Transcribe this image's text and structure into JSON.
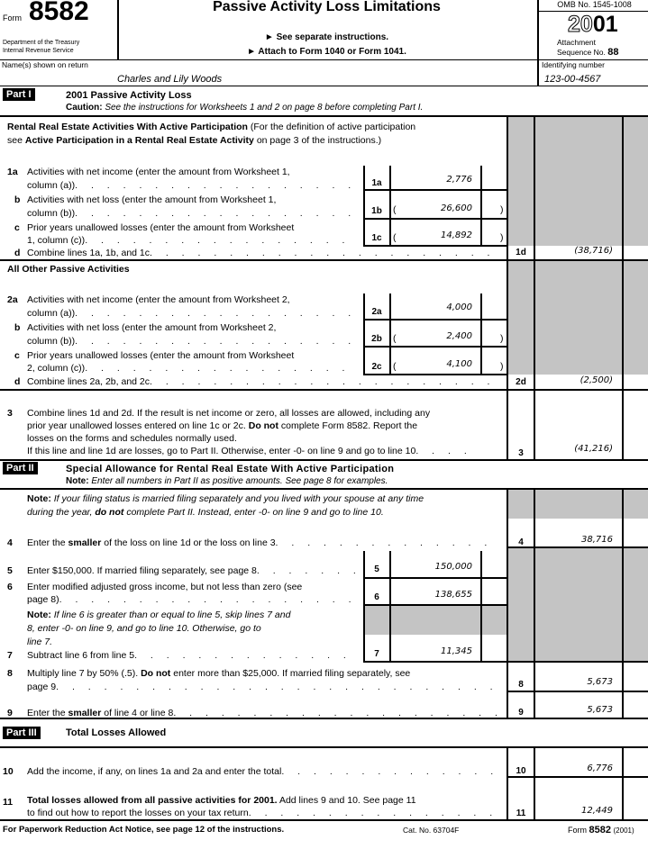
{
  "header": {
    "form_word": "Form",
    "form_number": "8582",
    "dept_line1": "Department of the Treasury",
    "dept_line2": "Internal Revenue Service",
    "title": "Passive Activity Loss Limitations",
    "instr1": "► See separate instructions.",
    "instr2": "► Attach to Form 1040 or Form 1041.",
    "omb": "OMB No. 1545-1008",
    "year_outline": "20",
    "year_bold": "01",
    "attach1": "Attachment",
    "attach2": "Sequence No.",
    "seq": "88"
  },
  "name_row": {
    "name_label": "Name(s) shown on return",
    "name_value": "Charles and Lily Woods",
    "id_label": "Identifying number",
    "id_value": "123-00-4567"
  },
  "part1": {
    "badge": "Part I",
    "title": "2001 Passive Activity Loss",
    "caution_bold": "Caution:",
    "caution_text": "See the instructions for Worksheets 1 and 2 on page 8 before completing Part I.",
    "rental_heading_bold": "Rental Real Estate Activities With Active Participation",
    "rental_heading_text": "(For the definition of active participation",
    "rental_heading_line2_pre": "see",
    "rental_heading_line2_bold": "Active Participation in a Rental Real Estate Activity",
    "rental_heading_line2_post": "on page 3 of the instructions.)",
    "l1a": {
      "num": "1a",
      "text1": "Activities with net income (enter the amount from Worksheet 1,",
      "text2": "column (a))",
      "box": "1a",
      "value": "2,776"
    },
    "l1b": {
      "num": "b",
      "text1": "Activities with net loss (enter the amount from Worksheet 1,",
      "text2": "column (b))",
      "box": "1b",
      "value": "26,600"
    },
    "l1c": {
      "num": "c",
      "text1": "Prior years unallowed losses (enter the amount from Worksheet",
      "text2": "1, column (c))",
      "box": "1c",
      "value": "14,892"
    },
    "l1d": {
      "num": "d",
      "text": "Combine lines 1a, 1b, and 1c",
      "box": "1d",
      "value": "(38,716)"
    },
    "other_heading": "All Other Passive Activities",
    "l2a": {
      "num": "2a",
      "text1": "Activities with net income (enter the amount from Worksheet 2,",
      "text2": "column (a))",
      "box": "2a",
      "value": "4,000"
    },
    "l2b": {
      "num": "b",
      "text1": "Activities with net loss (enter the amount from Worksheet 2,",
      "text2": "column (b))",
      "box": "2b",
      "value": "2,400"
    },
    "l2c": {
      "num": "c",
      "text1": "Prior years unallowed losses (enter the amount from Worksheet",
      "text2": "2, column (c))",
      "box": "2c",
      "value": "4,100"
    },
    "l2d": {
      "num": "d",
      "text": "Combine lines 2a, 2b, and 2c",
      "box": "2d",
      "value": "(2,500)"
    },
    "l3": {
      "num": "3",
      "text1": "Combine lines 1d and 2d. If the result is net income or zero, all losses are allowed, including any",
      "text2_pre": "prior year unallowed losses entered on line 1c or 2c.",
      "text2_bold": "Do not",
      "text2_post": "complete Form 8582. Report the",
      "text3": "losses on the forms and schedules normally used.",
      "text4": "If this line and line 1d are losses, go to Part II. Otherwise, enter -0- on line 9 and go to line 10",
      "box": "3",
      "value": "(41,216)"
    }
  },
  "part2": {
    "badge": "Part II",
    "title": "Special Allowance for Rental Real Estate With Active Participation",
    "note_bold": "Note:",
    "note_text": "Enter all numbers in Part II as positive amounts. See page 8 for examples.",
    "note2_bold": "Note:",
    "note2_text1": "If your filing status is married filing separately and you lived with your spouse at any time",
    "note2_text2_pre": "during the year,",
    "note2_text2_bold": "do not",
    "note2_text2_post": "complete Part II. Instead, enter -0- on line 9 and go to line 10.",
    "l4": {
      "num": "4",
      "pre": "Enter the",
      "bold": "smaller",
      "post": "of the loss on line 1d or the loss on line 3",
      "box": "4",
      "value": "38,716"
    },
    "l5": {
      "num": "5",
      "text": "Enter $150,000. If married filing separately, see page 8",
      "box": "5",
      "value": "150,000"
    },
    "l6": {
      "num": "6",
      "text1": "Enter modified adjusted gross income, but not less than zero (see",
      "text2": "page 8)",
      "box": "6",
      "value": "138,655"
    },
    "note3_bold": "Note:",
    "note3_text1": "If line 6 is greater than or equal to line 5, skip lines 7 and",
    "note3_text2": "8, enter -0- on line 9, and go to line 10. Otherwise, go to",
    "note3_text3": "line 7.",
    "l7": {
      "num": "7",
      "text": "Subtract line 6 from line 5",
      "box": "7",
      "value": "11,345"
    },
    "l8": {
      "num": "8",
      "text1_pre": "Multiply line 7 by 50% (.5).",
      "text1_bold": "Do not",
      "text1_post": "enter more than $25,000. If married filing separately, see",
      "text2": "page 9",
      "box": "8",
      "value": "5,673"
    },
    "l9": {
      "num": "9",
      "pre": "Enter the",
      "bold": "smaller",
      "post": "of line 4 or line 8",
      "box": "9",
      "value": "5,673"
    }
  },
  "part3": {
    "badge": "Part III",
    "title": "Total Losses Allowed",
    "l10": {
      "num": "10",
      "text": "Add the income, if any, on lines 1a and 2a and enter the total",
      "box": "10",
      "value": "6,776"
    },
    "l11": {
      "num": "11",
      "text1_bold": "Total losses allowed from all passive activities for 2001.",
      "text1_post": "Add lines 9 and 10. See page 11",
      "text2": "to find out how to report the losses on your tax return",
      "box": "11",
      "value": "12,449"
    }
  },
  "footer": {
    "paperwork": "For Paperwork Reduction Act Notice, see page 12 of the instructions.",
    "cat": "Cat. No. 63704F",
    "form_word": "Form",
    "form_number": "8582",
    "year": "(2001)"
  },
  "colors": {
    "shade": "#c4c4c4",
    "ink": "#000000"
  }
}
